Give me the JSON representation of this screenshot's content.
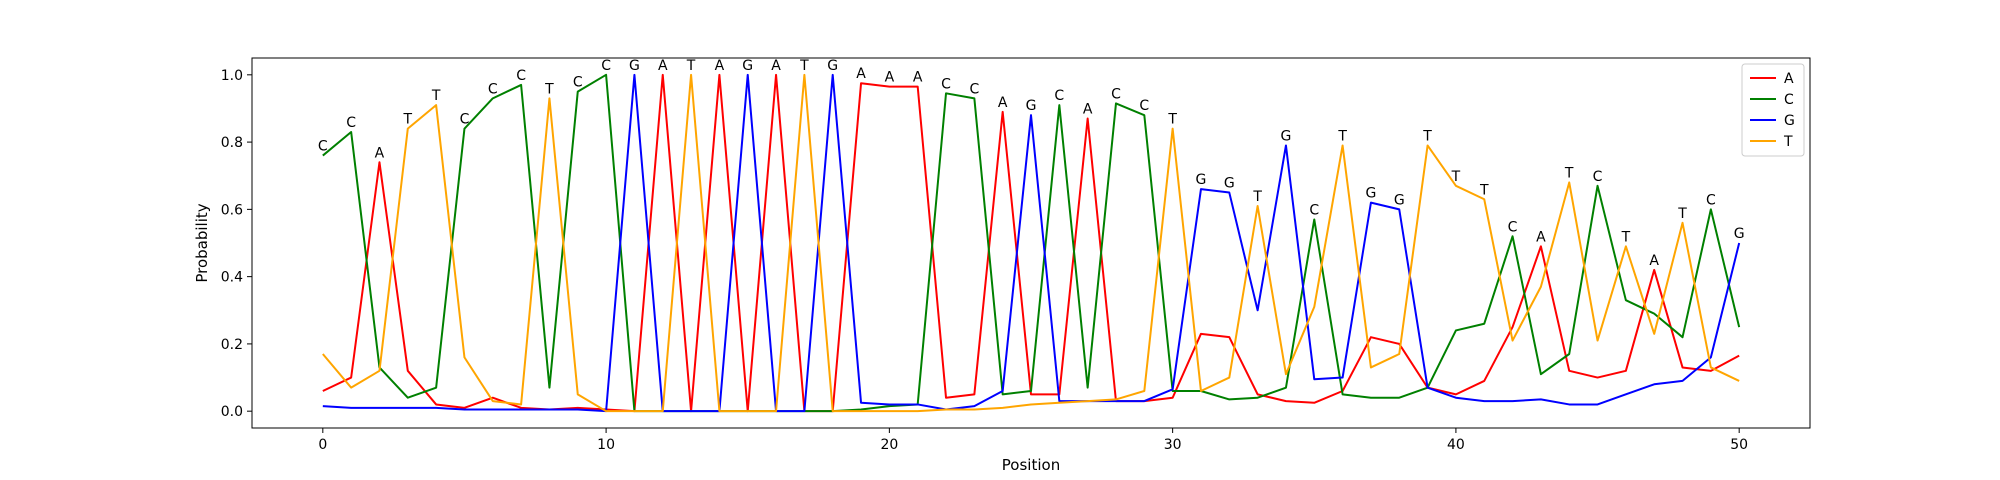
{
  "chart_data": {
    "type": "line",
    "title": "",
    "xlabel": "Position",
    "ylabel": "Probability",
    "xlim": [
      -2.5,
      52.5
    ],
    "ylim": [
      -0.05,
      1.05
    ],
    "x_ticks": [
      0,
      10,
      20,
      30,
      40,
      50
    ],
    "y_ticks": [
      0.0,
      0.2,
      0.4,
      0.6,
      0.8,
      1.0
    ],
    "x_tick_labels": [
      "0",
      "10",
      "20",
      "30",
      "40",
      "50"
    ],
    "y_tick_labels": [
      "0.0",
      "0.2",
      "0.4",
      "0.6",
      "0.8",
      "1.0"
    ],
    "grid": false,
    "legend_position": "top-right",
    "x": [
      0,
      1,
      2,
      3,
      4,
      5,
      6,
      7,
      8,
      9,
      10,
      11,
      12,
      13,
      14,
      15,
      16,
      17,
      18,
      19,
      20,
      21,
      22,
      23,
      24,
      25,
      26,
      27,
      28,
      29,
      30,
      31,
      32,
      33,
      34,
      35,
      36,
      37,
      38,
      39,
      40,
      41,
      42,
      43,
      44,
      45,
      46,
      47,
      48,
      49,
      50
    ],
    "series": [
      {
        "name": "A",
        "color": "#ff0000",
        "values": [
          0.06,
          0.1,
          0.74,
          0.12,
          0.02,
          0.01,
          0.04,
          0.01,
          0.005,
          0.01,
          0.005,
          0.0,
          1.0,
          0.0,
          1.0,
          0.0,
          1.0,
          0.0,
          0.0,
          0.975,
          0.965,
          0.965,
          0.04,
          0.05,
          0.89,
          0.05,
          0.05,
          0.87,
          0.03,
          0.03,
          0.04,
          0.23,
          0.22,
          0.05,
          0.03,
          0.025,
          0.06,
          0.22,
          0.2,
          0.07,
          0.05,
          0.09,
          0.25,
          0.49,
          0.12,
          0.1,
          0.12,
          0.42,
          0.13,
          0.12,
          0.165
        ]
      },
      {
        "name": "C",
        "color": "#008000",
        "values": [
          0.76,
          0.83,
          0.13,
          0.04,
          0.07,
          0.84,
          0.93,
          0.97,
          0.07,
          0.95,
          1.0,
          0.0,
          0.0,
          0.0,
          0.0,
          0.0,
          0.0,
          0.0,
          0.0,
          0.005,
          0.015,
          0.02,
          0.945,
          0.93,
          0.05,
          0.06,
          0.91,
          0.07,
          0.915,
          0.88,
          0.06,
          0.06,
          0.035,
          0.04,
          0.07,
          0.57,
          0.05,
          0.04,
          0.04,
          0.07,
          0.24,
          0.26,
          0.52,
          0.11,
          0.17,
          0.67,
          0.33,
          0.29,
          0.22,
          0.6,
          0.25
        ]
      },
      {
        "name": "G",
        "color": "#0000ff",
        "values": [
          0.015,
          0.01,
          0.01,
          0.01,
          0.01,
          0.005,
          0.005,
          0.005,
          0.005,
          0.005,
          0.0,
          1.0,
          0.0,
          0.0,
          0.0,
          1.0,
          0.0,
          0.0,
          1.0,
          0.025,
          0.02,
          0.02,
          0.005,
          0.015,
          0.06,
          0.88,
          0.03,
          0.03,
          0.03,
          0.03,
          0.065,
          0.66,
          0.65,
          0.3,
          0.79,
          0.095,
          0.1,
          0.62,
          0.6,
          0.07,
          0.04,
          0.03,
          0.03,
          0.035,
          0.02,
          0.02,
          0.05,
          0.08,
          0.09,
          0.16,
          0.5
        ]
      },
      {
        "name": "T",
        "color": "#ffa500",
        "values": [
          0.17,
          0.07,
          0.12,
          0.84,
          0.91,
          0.16,
          0.03,
          0.02,
          0.93,
          0.05,
          0.0,
          0.0,
          0.0,
          1.0,
          0.0,
          0.0,
          0.0,
          1.0,
          0.0,
          0.0,
          0.0,
          0.0,
          0.005,
          0.005,
          0.01,
          0.02,
          0.025,
          0.03,
          0.035,
          0.06,
          0.84,
          0.06,
          0.1,
          0.61,
          0.11,
          0.31,
          0.79,
          0.13,
          0.17,
          0.79,
          0.67,
          0.63,
          0.21,
          0.37,
          0.68,
          0.21,
          0.49,
          0.23,
          0.56,
          0.13,
          0.09
        ]
      }
    ],
    "point_labels": [
      "C",
      "C",
      "A",
      "T",
      "T",
      "C",
      "C",
      "C",
      "T",
      "C",
      "C",
      "G",
      "A",
      "T",
      "A",
      "G",
      "A",
      "T",
      "G",
      "A",
      "A",
      "A",
      "C",
      "C",
      "A",
      "G",
      "C",
      "A",
      "C",
      "C",
      "T",
      "G",
      "G",
      "T",
      "G",
      "C",
      "T",
      "G",
      "G",
      "T",
      "T",
      "T",
      "C",
      "A",
      "T",
      "C",
      "T",
      "A",
      "T",
      "C",
      "G"
    ]
  }
}
